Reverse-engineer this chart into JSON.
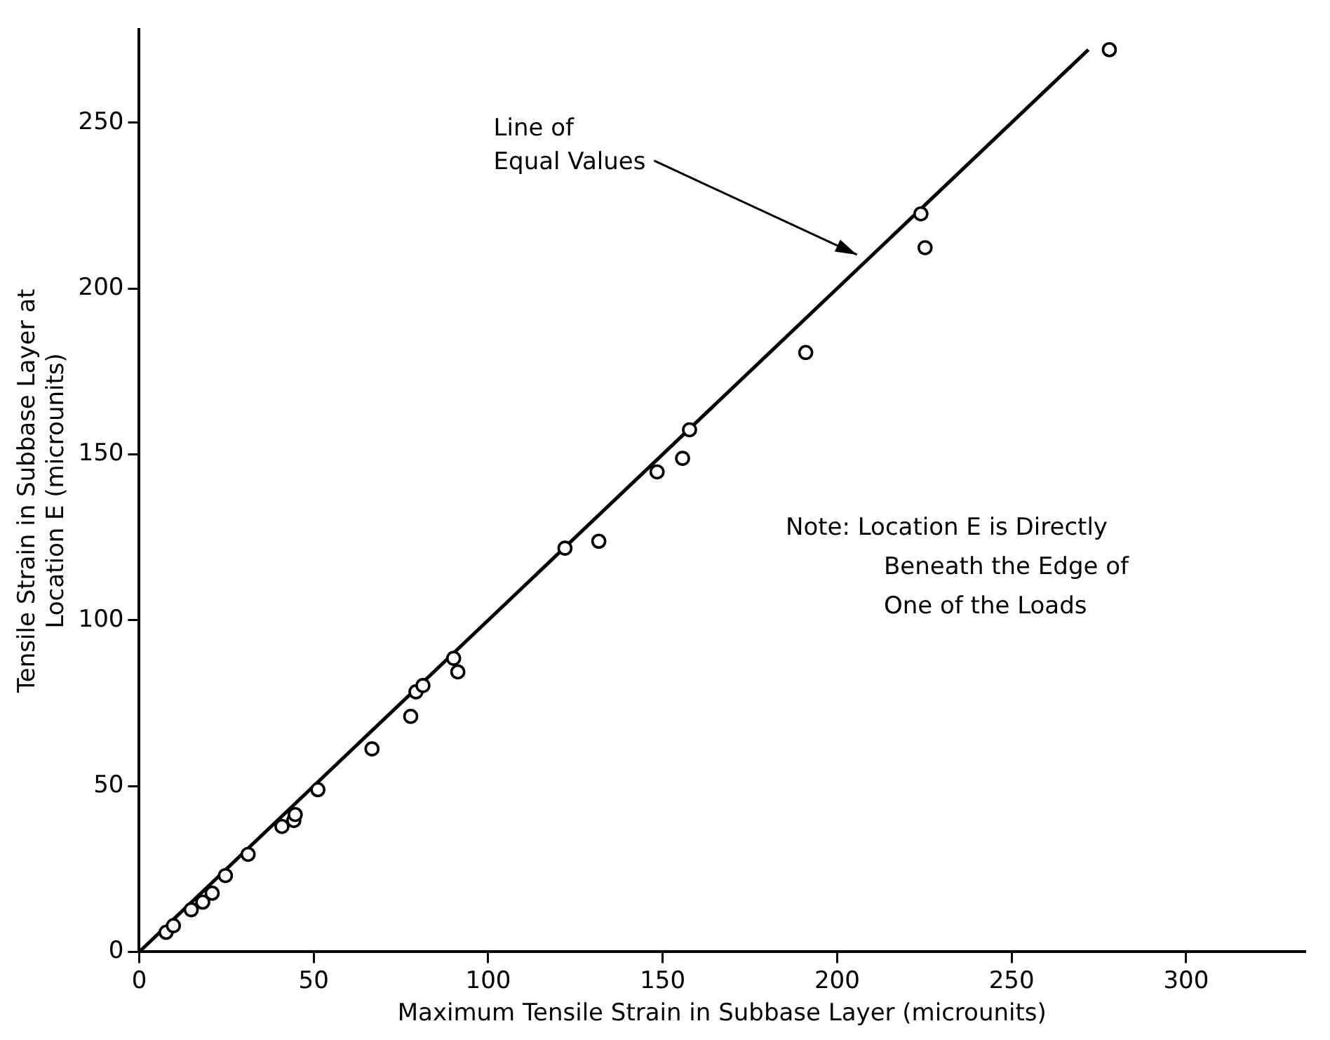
{
  "chart_data": {
    "type": "scatter",
    "xlabel": "Maximum Tensile Strain in Subbase Layer (microunits)",
    "ylabel": "Tensile Strain in Subbase Layer at\nLocation E (microunits)",
    "xlim": [
      0,
      334
    ],
    "ylim": [
      0,
      278
    ],
    "xticks": [
      0,
      50,
      100,
      150,
      200,
      250,
      300
    ],
    "yticks": [
      0,
      50,
      100,
      150,
      200,
      250
    ],
    "marker": "circle",
    "series": [
      {
        "color": "#000000",
        "x": [
          7.7,
          9.8,
          14.9,
          18.2,
          20.9,
          24.7,
          31.2,
          40.9,
          44.3,
          44.7,
          51.2,
          66.7,
          77.8,
          79.3,
          81.3,
          90.1,
          91.3,
          122,
          131.7,
          148.4,
          155.7,
          157.7,
          191,
          224,
          225.2,
          278
        ],
        "values": [
          5.9,
          7.9,
          12.7,
          15,
          17.7,
          23,
          29.4,
          37.8,
          39.6,
          41.4,
          48.9,
          61.2,
          71,
          78.4,
          80.3,
          88.5,
          84.4,
          121.7,
          123.8,
          144.7,
          148.8,
          157.4,
          180.7,
          222.5,
          212.3,
          272
        ]
      },
      {
        "type": "line",
        "color": "#000000",
        "x": [
          0,
          272
        ],
        "values": [
          0,
          272
        ],
        "marker": "none"
      }
    ],
    "annotations": [
      "Line of\nEqual Values",
      "Note: Location E is Directly\nBeneath the Edge of\nOne of the Loads"
    ]
  }
}
